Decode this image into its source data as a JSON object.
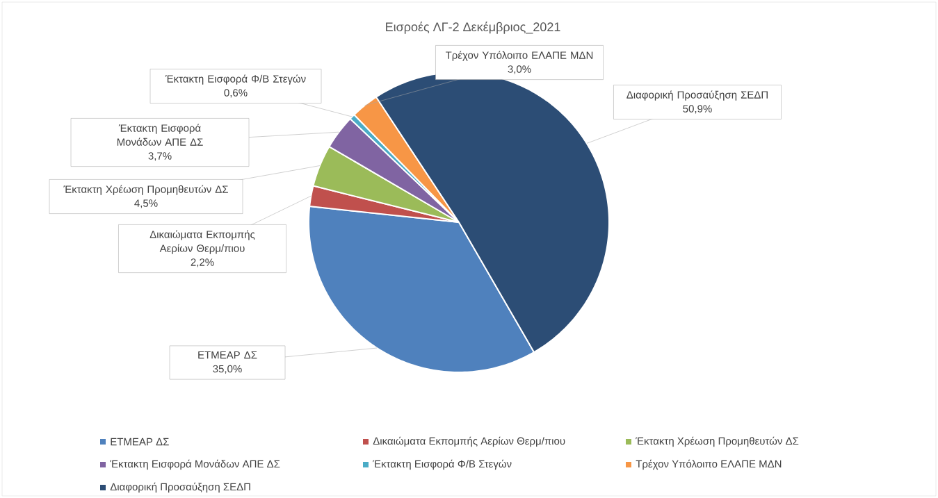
{
  "chart_data": {
    "type": "pie",
    "title": "Εισροές ΛΓ-2 Δεκέμβριος_2021",
    "categories": [
      "ΕΤΜΕΑΡ ΔΣ",
      "Δικαιώματα Εκπομπής Αερίων Θερμ/πιου",
      "Έκτακτη Χρέωση Προμηθευτών ΔΣ",
      "Έκτακτη Εισφορά Μονάδων ΑΠΕ ΔΣ",
      "Έκτακτη Εισφορά Φ/Β Στεγών",
      "Τρέχον Υπόλοιπο ΕΛΑΠΕ ΜΔΝ",
      "Διαφορική Προσαύξηση ΣΕΔΠ"
    ],
    "values": [
      35.0,
      2.2,
      4.5,
      3.7,
      0.6,
      3.0,
      50.9
    ],
    "value_labels": [
      "35,0%",
      "2,2%",
      "4,5%",
      "3,7%",
      "0,6%",
      "3,0%",
      "50,9%"
    ],
    "colors": [
      "#4f81bd",
      "#c0504d",
      "#9bbb59",
      "#8064a2",
      "#4bacc6",
      "#f79646",
      "#2c4d75"
    ],
    "legend": "bottom"
  }
}
